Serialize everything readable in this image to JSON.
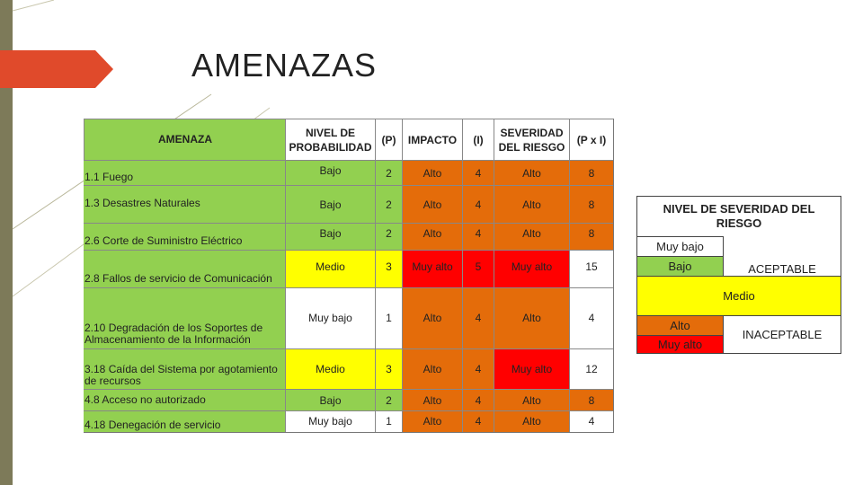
{
  "title": "AMENAZAS",
  "table": {
    "headers": {
      "amenaza": "AMENAZA",
      "nivel_prob": "NIVEL DE PROBABILIDAD",
      "p": "(P)",
      "impacto": "IMPACTO",
      "i": "(I)",
      "severidad": "SEVERIDAD DEL RIESGO",
      "pxi": "(P x I)"
    },
    "rows": [
      {
        "amenaza": "1.1 Fuego",
        "prob": "Bajo",
        "p": "2",
        "impacto": "Alto",
        "i": "4",
        "sev": "Alto",
        "pxi": "8"
      },
      {
        "amenaza": "1.3 Desastres Naturales",
        "prob": "Bajo",
        "p": "2",
        "impacto": "Alto",
        "i": "4",
        "sev": "Alto",
        "pxi": "8"
      },
      {
        "amenaza": "2.6 Corte de Suministro Eléctrico",
        "prob": "Bajo",
        "p": "2",
        "impacto": "Alto",
        "i": "4",
        "sev": "Alto",
        "pxi": "8"
      },
      {
        "amenaza": "2.8 Fallos de servicio de Comunicación",
        "prob": "Medio",
        "p": "3",
        "impacto": "Muy alto",
        "i": "5",
        "sev": "Muy alto",
        "pxi": "15"
      },
      {
        "amenaza": "2.10 Degradación de los Soportes de Almacenamiento de la Información",
        "prob": "Muy bajo",
        "p": "1",
        "impacto": "Alto",
        "i": "4",
        "sev": "Alto",
        "pxi": "4"
      },
      {
        "amenaza": "3.18 Caída del Sistema por agotamiento de recursos",
        "prob": "Medio",
        "p": "3",
        "impacto": "Alto",
        "i": "4",
        "sev": "Muy alto",
        "pxi": "12"
      },
      {
        "amenaza": "4.8 Acceso no autorizado",
        "prob": "Bajo",
        "p": "2",
        "impacto": "Alto",
        "i": "4",
        "sev": "Alto",
        "pxi": "8"
      },
      {
        "amenaza": "4.18 Denegación de servicio",
        "prob": "Muy bajo",
        "p": "1",
        "impacto": "Alto",
        "i": "4",
        "sev": "Alto",
        "pxi": "4"
      }
    ]
  },
  "legend": {
    "title": "NIVEL DE SEVERIDAD DEL RIESGO",
    "levels": [
      "Muy bajo",
      "Bajo",
      "Medio",
      "Alto",
      "Muy alto"
    ],
    "aceptable": "ACEPTABLE",
    "inaceptable": "INACEPTABLE"
  },
  "colors": {
    "muy_bajo": "#ffffff",
    "bajo": "#92d050",
    "medio": "#ffff00",
    "alto": "#e46c0a",
    "muy_alto": "#ff0000",
    "accent_bar": "#7d7a59",
    "arrow": "#e04a2b"
  }
}
